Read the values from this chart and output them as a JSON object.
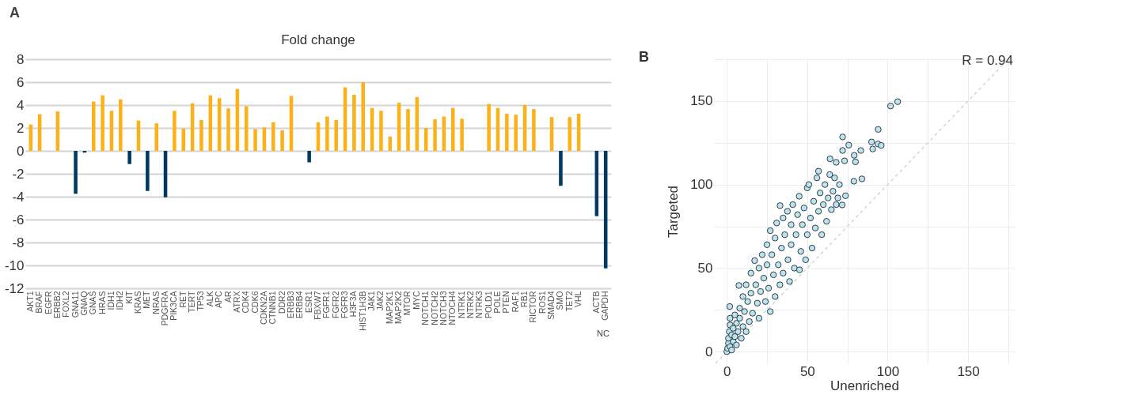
{
  "chart_data": [
    {
      "type": "bar",
      "title": "Fold change",
      "categories": [
        "AKT1",
        "BRAF",
        "EGFR",
        "ERBB2",
        "FOXL2",
        "GNA11",
        "GNAQ",
        "GNAS",
        "HRAS",
        "IDH1",
        "IDH2",
        "KIT",
        "KRAS",
        "MET",
        "NRAS",
        "PDGFRA",
        "PIK3CA",
        "RET",
        "TERT",
        "TP53",
        "ALK",
        "APC",
        "AR",
        "ATRX",
        "CDK4",
        "CDK6",
        "CDKN2A",
        "CTNNB1",
        "DDR2",
        "ERBB3",
        "ERBB4",
        "ESR1",
        "FBXW7",
        "FGFR1",
        "FGFR2",
        "FGFR3",
        "H3F3A",
        "HIST1H3B",
        "JAK1",
        "JAK2",
        "MAP2K1",
        "MAP2K2",
        "MTOR",
        "MYC",
        "NOTCH1",
        "NOTCH2",
        "NOTCH3",
        "NTOCH4",
        "NTRK1",
        "NTRK2",
        "NTRK3",
        "POLD1",
        "POLE",
        "PTEN",
        "RAF1",
        "RB1",
        "RICTOR",
        "ROS1",
        "SMAD4",
        "SMO",
        "TET2",
        "VHL",
        null,
        "ACTB",
        "GAPDH"
      ],
      "values": [
        2.3,
        3.2,
        null,
        3.45,
        null,
        -3.75,
        -0.15,
        4.3,
        4.85,
        3.5,
        4.5,
        -1.15,
        2.65,
        -3.5,
        2.4,
        -4.05,
        3.5,
        1.95,
        4.15,
        2.7,
        4.85,
        4.6,
        3.7,
        5.4,
        3.9,
        1.9,
        2.05,
        2.5,
        1.8,
        4.8,
        null,
        -1.0,
        2.5,
        3.0,
        2.7,
        5.55,
        4.9,
        6.0,
        3.75,
        3.5,
        1.25,
        4.2,
        3.65,
        4.7,
        2.0,
        2.75,
        3.0,
        3.75,
        2.8,
        null,
        null,
        4.1,
        3.75,
        3.25,
        3.15,
        4.0,
        3.65,
        null,
        2.95,
        -3.05,
        2.95,
        3.25,
        null,
        -5.7,
        -10.25
      ],
      "colors": [
        "#fbb117",
        "#fbb117",
        "#fbb117",
        "#fbb117",
        "#fbb117",
        "#003a63",
        "#003a63",
        "#fbb117",
        "#fbb117",
        "#fbb117",
        "#fbb117",
        "#003a63",
        "#fbb117",
        "#003a63",
        "#fbb117",
        "#003a63",
        "#fbb117",
        "#fbb117",
        "#fbb117",
        "#fbb117",
        "#fbb117",
        "#fbb117",
        "#fbb117",
        "#fbb117",
        "#fbb117",
        "#fbb117",
        "#fbb117",
        "#fbb117",
        "#fbb117",
        "#fbb117",
        "#fbb117",
        "#003a63",
        "#fbb117",
        "#fbb117",
        "#fbb117",
        "#fbb117",
        "#fbb117",
        "#fbb117",
        "#fbb117",
        "#fbb117",
        "#fbb117",
        "#fbb117",
        "#fbb117",
        "#fbb117",
        "#fbb117",
        "#fbb117",
        "#fbb117",
        "#fbb117",
        "#fbb117",
        "#fbb117",
        "#fbb117",
        "#fbb117",
        "#fbb117",
        "#fbb117",
        "#fbb117",
        "#fbb117",
        "#fbb117",
        "#fbb117",
        "#fbb117",
        "#003a63",
        "#fbb117",
        "#fbb117",
        "#fbb117",
        "#003a63",
        "#003a63"
      ],
      "ylim": [
        -12,
        8
      ],
      "yticks": [
        8,
        6,
        4,
        2,
        0,
        -2,
        -4,
        -6,
        -8,
        -10,
        -12
      ],
      "grid": "y",
      "annotations": [
        "A",
        "NC"
      ]
    },
    {
      "type": "scatter",
      "xlabel": "Unenriched",
      "ylabel": "Targeted",
      "series": [
        {
          "type": "scatter",
          "color": "#bde3ef",
          "marker": "circle",
          "x": [
            0,
            0.5,
            1,
            1,
            1.5,
            2,
            2,
            2,
            1.8,
            3,
            3,
            4,
            4,
            5,
            5,
            6,
            6,
            7,
            7.5,
            8,
            8,
            9,
            10,
            10,
            11,
            12,
            12,
            13,
            14,
            15,
            15,
            16,
            17.3,
            18,
            19,
            20,
            20,
            21,
            22,
            23,
            24,
            25,
            25,
            26,
            27,
            27,
            28,
            29,
            30,
            30,
            31,
            32,
            33,
            33.1,
            34,
            35,
            35,
            36,
            37.7,
            38,
            39,
            40,
            40,
            41,
            42,
            43,
            44,
            45,
            45.2,
            46,
            47,
            48,
            49,
            50,
            50,
            51,
            52,
            53,
            54,
            55,
            56,
            57,
            57,
            58,
            59,
            60,
            61,
            62,
            63,
            64,
            65,
            66,
            67,
            68,
            69,
            70,
            71.7,
            73.8,
            106.2,
            101.8,
            94.1,
            72,
            90,
            94,
            96,
            75.8,
            90.7,
            72,
            83.3,
            79.2,
            80,
            64.2,
            84,
            79,
            73.2,
            68
          ],
          "values": [
            0,
            2,
            5,
            8,
            12,
            3,
            16,
            20,
            27,
            10,
            1,
            6,
            14,
            22,
            9,
            4,
            17,
            12,
            39.6,
            26,
            20,
            8,
            33,
            15,
            24,
            12,
            40,
            30,
            18,
            47,
            35,
            23,
            54.5,
            40,
            29,
            50,
            20,
            36,
            58,
            44,
            30,
            64,
            52,
            38,
            24,
            72.4,
            58,
            46,
            33,
            68,
            77,
            52,
            40,
            87.4,
            62,
            80,
            47,
            70,
            84,
            55,
            42,
            76,
            64,
            88,
            50,
            70,
            82,
            93,
            49,
            60,
            76,
            86,
            55,
            98,
            70,
            100,
            80,
            62,
            90,
            74,
            104,
            108,
            84,
            95,
            70,
            88,
            100,
            78,
            92,
            106,
            85,
            96,
            104,
            88,
            92,
            100,
            87.8,
            93.3,
            149.6,
            147,
            133,
            128.5,
            125.5,
            124.3,
            123.4,
            123.6,
            121.3,
            120.4,
            120.4,
            117.5,
            113.6,
            115.4,
            103.4,
            102,
            114.2,
            113.3
          ]
        },
        {
          "type": "line",
          "color": "#cccccc",
          "line_style": "dashed",
          "x": [
            -7,
            175
          ],
          "values": [
            -7,
            175
          ]
        }
      ],
      "xlim": [
        -8,
        179
      ],
      "ylim": [
        -7,
        175
      ],
      "xticks": [
        0,
        {
          "value": 25,
          "label": null
        },
        50,
        {
          "value": 75,
          "label": null
        },
        100,
        {
          "value": 125,
          "label": null
        },
        150,
        {
          "value": 175,
          "label": null
        }
      ],
      "yticks": [
        0,
        {
          "value": 25,
          "label": null
        },
        50,
        {
          "value": 75,
          "label": null
        },
        100,
        {
          "value": 125,
          "label": null
        },
        150,
        {
          "value": 175,
          "label": null
        }
      ],
      "grid": true,
      "annotations": [
        "B",
        "R = 0.94"
      ]
    }
  ]
}
